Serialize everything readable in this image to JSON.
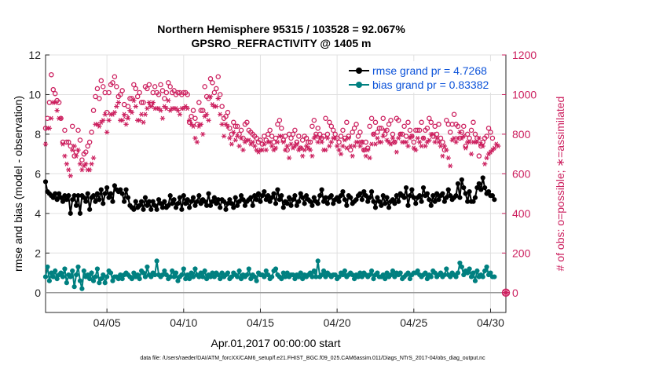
{
  "chart_data": {
    "type": "line",
    "title": "Northern Hemisphere 95315 / 103528 = 92.067%",
    "subtitle": "GPSRO_REFRACTIVITY @ 1405 m",
    "xlabel": "Apr.01,2017 00:00:00 start",
    "ylabel_left": "rmse and bias (model - observation)",
    "ylabel_right": "# of obs: o=possible; ∗=assimilated",
    "footnote": "data file: /Users/raeder/DAI/ATM_forcXX/CAM6_setup/f.e21.FHIST_BGC.f09_025.CAM6assim.011/Diags_NTrS_2017-04/obs_diag_output.nc",
    "xlim": [
      1.0,
      31.0
    ],
    "ylim_left": [
      -1,
      12
    ],
    "ylim_right": [
      -100,
      1200
    ],
    "x_ticks": [
      5,
      10,
      15,
      20,
      25,
      30
    ],
    "x_tick_labels": [
      "04/05",
      "04/10",
      "04/15",
      "04/20",
      "04/25",
      "04/30"
    ],
    "y_left_ticks": [
      "0",
      "2",
      "4",
      "6",
      "8",
      "10",
      "12"
    ],
    "y_right_ticks": [
      "0",
      "200",
      "400",
      "600",
      "800",
      "1000",
      "1200"
    ],
    "grid": true,
    "legend_position": "top-right",
    "colors": {
      "rmse": "#000000",
      "bias": "#008080",
      "obs": "#cc1f5e",
      "zero_line": "#999999"
    },
    "x_start": 1.0,
    "x_step": 0.125,
    "series": [
      {
        "name": "rmse grand pr = 4.7268",
        "axis": "left",
        "values": [
          5.6,
          5.1,
          5.0,
          4.9,
          4.8,
          5.0,
          4.7,
          5.0,
          4.8,
          4.6,
          4.9,
          4.7,
          4.9,
          4.0,
          4.7,
          4.9,
          4.4,
          4.9,
          4.0,
          4.9,
          4.8,
          4.6,
          5.0,
          4.2,
          4.8,
          4.9,
          4.6,
          5.0,
          4.7,
          5.2,
          4.5,
          5.0,
          5.3,
          4.8,
          5.0,
          4.6,
          5.4,
          5.2,
          5.1,
          5.2,
          5.0,
          4.6,
          5.2,
          4.8,
          4.4,
          4.3,
          4.2,
          4.6,
          4.3,
          4.4,
          4.6,
          4.2,
          4.8,
          4.4,
          4.6,
          4.2,
          4.6,
          4.4,
          4.2,
          4.7,
          4.5,
          4.3,
          4.6,
          4.3,
          4.4,
          4.9,
          4.5,
          4.7,
          4.3,
          4.5,
          4.8,
          4.2,
          4.9,
          4.5,
          4.7,
          4.3,
          4.6,
          4.8,
          4.4,
          4.6,
          4.9,
          4.5,
          4.7,
          4.6,
          4.4,
          5.0,
          4.4,
          4.6,
          4.8,
          4.5,
          4.7,
          4.3,
          4.7,
          4.6,
          4.2,
          4.5,
          4.7,
          4.5,
          4.3,
          4.8,
          4.4,
          4.6,
          4.9,
          4.7,
          4.4,
          4.6,
          4.7,
          4.8,
          4.4,
          4.9,
          4.7,
          5.0,
          4.6,
          4.9,
          5.1,
          4.7,
          4.9,
          4.6,
          4.8,
          5.0,
          4.5,
          5.2,
          4.7,
          4.9,
          4.3,
          4.6,
          4.5,
          4.8,
          4.4,
          4.7,
          4.9,
          4.4,
          4.6,
          5.0,
          4.8,
          4.5,
          4.9,
          4.7,
          4.6,
          4.4,
          4.8,
          4.6,
          4.5,
          4.9,
          5.2,
          4.6,
          4.8,
          4.5,
          4.8,
          4.9,
          4.5,
          4.7,
          4.8,
          4.6,
          4.9,
          5.1,
          4.7,
          4.4,
          4.9,
          4.8,
          4.5,
          4.6,
          4.7,
          4.9,
          5.0,
          4.7,
          5.1,
          4.9,
          4.6,
          4.8,
          5.1,
          4.6,
          4.3,
          4.8,
          4.6,
          4.4,
          4.9,
          4.5,
          4.8,
          4.3,
          4.6,
          4.7,
          4.5,
          4.9,
          4.6,
          5.0,
          4.9,
          4.8,
          5.3,
          4.4,
          4.9,
          5.2,
          4.8,
          4.5,
          4.8,
          4.9,
          4.6,
          5.3,
          4.9,
          5.0,
          4.7,
          4.4,
          4.9,
          4.6,
          5.0,
          4.7,
          4.9,
          5.0,
          4.6,
          4.8,
          5.2,
          4.9,
          4.7,
          4.8,
          4.9,
          5.5,
          4.8,
          5.7,
          5.3,
          5.0,
          4.6,
          5.1,
          4.6,
          4.6,
          4.8,
          5.3,
          5.5,
          5.2,
          5.8,
          5.3,
          5.0,
          5.1,
          4.9,
          4.9,
          4.7
        ]
      },
      {
        "name": "bias grand pr = 0.83382",
        "axis": "left",
        "values": [
          0.8,
          1.3,
          0.6,
          1.0,
          0.8,
          1.1,
          0.7,
          0.9,
          1.0,
          0.8,
          1.2,
          0.5,
          0.9,
          0.8,
          1.1,
          0.3,
          0.9,
          1.3,
          0.6,
          0.2,
          1.1,
          0.8,
          0.9,
          0.7,
          1.0,
          0.6,
          0.8,
          1.2,
          0.5,
          0.7,
          0.9,
          0.5,
          0.8,
          1.1,
          1.0,
          0.6,
          0.8,
          0.8,
          0.7,
          0.9,
          0.7,
          0.9,
          1.0,
          0.9,
          0.8,
          0.7,
          1.0,
          0.8,
          0.9,
          0.7,
          1.1,
          1.0,
          0.8,
          1.3,
          0.9,
          0.8,
          1.0,
          0.9,
          1.6,
          0.9,
          0.8,
          0.9,
          1.1,
          0.9,
          0.7,
          0.8,
          1.1,
          0.8,
          1.0,
          0.6,
          0.8,
          0.9,
          1.2,
          0.7,
          0.9,
          0.7,
          1.0,
          0.8,
          1.2,
          0.9,
          0.8,
          1.0,
          0.8,
          1.1,
          0.7,
          0.9,
          0.8,
          1.0,
          0.8,
          1.0,
          0.9,
          0.7,
          1.0,
          0.8,
          0.9,
          1.0,
          0.7,
          0.8,
          1.0,
          0.9,
          0.8,
          1.1,
          0.7,
          0.9,
          0.8,
          0.9,
          1.2,
          0.7,
          0.9,
          0.8,
          0.6,
          1.0,
          0.9,
          0.9,
          0.8,
          1.1,
          0.9,
          0.7,
          0.8,
          1.1,
          1.2,
          0.9,
          0.8,
          0.7,
          1.0,
          0.8,
          1.0,
          0.8,
          0.9,
          0.9,
          0.7,
          0.9,
          0.8,
          1.0,
          0.7,
          0.9,
          0.8,
          0.9,
          1.0,
          0.8,
          1.1,
          0.8,
          1.6,
          0.8,
          0.9,
          1.1,
          0.8,
          1.0,
          0.9,
          0.8,
          0.9,
          0.9,
          0.7,
          0.8,
          1.0,
          0.9,
          1.1,
          0.8,
          0.9,
          1.0,
          0.9,
          0.7,
          0.9,
          0.8,
          1.0,
          0.8,
          1.0,
          0.9,
          0.8,
          0.9,
          1.1,
          0.7,
          0.9,
          1.0,
          0.8,
          0.8,
          0.9,
          0.7,
          1.0,
          0.8,
          0.9,
          1.1,
          0.8,
          1.0,
          0.9,
          1.0,
          0.7,
          0.8,
          0.9,
          1.0,
          0.7,
          0.9,
          1.0,
          1.0,
          1.1,
          0.9,
          0.8,
          0.9,
          1.0,
          0.7,
          0.9,
          0.8,
          1.1,
          1.0,
          0.8,
          0.9,
          1.0,
          0.8,
          0.9,
          1.2,
          0.9,
          0.8,
          1.0,
          0.9,
          0.8,
          1.0,
          1.5,
          1.3,
          0.9,
          1.1,
          1.0,
          1.2,
          0.8,
          1.0,
          0.6,
          1.1,
          0.8,
          0.9,
          0.8,
          1.1,
          1.3,
          0.9,
          1.0,
          0.8,
          0.8
        ]
      },
      {
        "name": "possible",
        "axis": "right",
        "marker": "o",
        "values": [
          830,
          880,
          960,
          1100,
          1025,
          1005,
          970,
          960,
          880,
          760,
          820,
          760,
          760,
          740,
          840,
          690,
          710,
          820,
          770,
          670,
          700,
          710,
          740,
          760,
          810,
          920,
          990,
          1030,
          980,
          1070,
          1040,
          1010,
          910,
          1010,
          1050,
          1060,
          1090,
          1040,
          990,
          1000,
          1020,
          950,
          890,
          940,
          980,
          980,
          1050,
          1030,
          990,
          1010,
          960,
          960,
          1040,
          1030,
          1050,
          950,
          1010,
          1040,
          1010,
          1000,
          1050,
          1020,
          980,
          1010,
          1060,
          1040,
          1010,
          1020,
          1000,
          1010,
          1010,
          1000,
          1010,
          1010,
          1000,
          860,
          890,
          920,
          880,
          850,
          960,
          920,
          920,
          1040,
          990,
          980,
          1080,
          1060,
          1010,
          1030,
          1090,
          1000,
          940,
          880,
          890,
          910,
          830,
          800,
          860,
          840,
          840,
          800,
          820,
          780,
          850,
          860,
          820,
          810,
          800,
          790,
          780,
          760,
          770,
          750,
          790,
          770,
          800,
          820,
          790,
          760,
          780,
          850,
          870,
          830,
          770,
          790,
          720,
          800,
          780,
          800,
          820,
          760,
          790,
          730,
          770,
          790,
          780,
          760,
          760,
          840,
          870,
          800,
          830,
          800,
          780,
          790,
          880,
          800,
          860,
          840,
          820,
          800,
          780,
          760,
          790,
          820,
          780,
          860,
          790,
          720,
          810,
          830,
          850,
          790,
          810,
          760,
          720,
          760,
          730,
          840,
          880,
          800,
          860,
          810,
          830,
          830,
          880,
          800,
          820,
          850,
          870,
          800,
          760,
          880,
          870,
          800,
          800,
          840,
          790,
          860,
          820,
          790,
          760,
          820,
          820,
          820,
          860,
          780,
          820,
          830,
          880,
          860,
          790,
          840,
          800,
          850,
          780,
          760,
          720,
          870,
          850,
          810,
          850,
          900,
          850,
          840,
          780,
          810,
          840,
          740,
          800,
          780,
          820,
          860,
          800,
          780,
          690,
          740,
          760,
          780,
          790,
          830,
          810,
          780
        ]
      },
      {
        "name": "assimilated",
        "axis": "right",
        "marker": "*",
        "values": [
          750,
          830,
          830,
          880,
          960,
          960,
          920,
          880,
          880,
          750,
          690,
          650,
          620,
          590,
          720,
          740,
          690,
          720,
          650,
          620,
          640,
          650,
          620,
          620,
          650,
          680,
          850,
          850,
          840,
          860,
          870,
          900,
          810,
          870,
          900,
          900,
          910,
          940,
          960,
          870,
          870,
          900,
          850,
          880,
          920,
          910,
          970,
          940,
          870,
          870,
          900,
          860,
          900,
          930,
          960,
          940,
          960,
          930,
          930,
          930,
          920,
          880,
          940,
          930,
          970,
          920,
          930,
          930,
          930,
          920,
          900,
          930,
          930,
          940,
          930,
          870,
          850,
          840,
          780,
          760,
          840,
          850,
          800,
          890,
          900,
          870,
          990,
          950,
          940,
          940,
          980,
          900,
          850,
          790,
          850,
          840,
          780,
          750,
          810,
          770,
          790,
          740,
          780,
          720,
          760,
          770,
          770,
          750,
          760,
          740,
          720,
          710,
          720,
          720,
          750,
          720,
          760,
          760,
          740,
          720,
          730,
          760,
          790,
          790,
          760,
          720,
          740,
          680,
          750,
          730,
          740,
          750,
          720,
          730,
          690,
          720,
          740,
          730,
          720,
          690,
          780,
          790,
          760,
          780,
          760,
          720,
          720,
          780,
          740,
          760,
          780,
          780,
          740,
          720,
          700,
          740,
          770,
          730,
          780,
          740,
          690,
          740,
          760,
          760,
          740,
          760,
          720,
          690,
          720,
          680,
          750,
          800,
          750,
          780,
          760,
          760,
          790,
          820,
          770,
          760,
          750,
          780,
          760,
          710,
          780,
          800,
          760,
          760,
          760,
          740,
          780,
          790,
          730,
          720,
          780,
          760,
          740,
          780,
          740,
          760,
          770,
          800,
          800,
          760,
          780,
          760,
          740,
          690,
          740,
          720,
          680,
          640,
          770,
          780,
          760,
          780,
          810,
          780,
          790,
          730,
          760,
          760,
          700,
          760,
          760,
          760,
          780,
          750,
          740,
          650,
          680,
          700,
          710,
          720,
          730,
          750,
          740
        ]
      }
    ]
  }
}
